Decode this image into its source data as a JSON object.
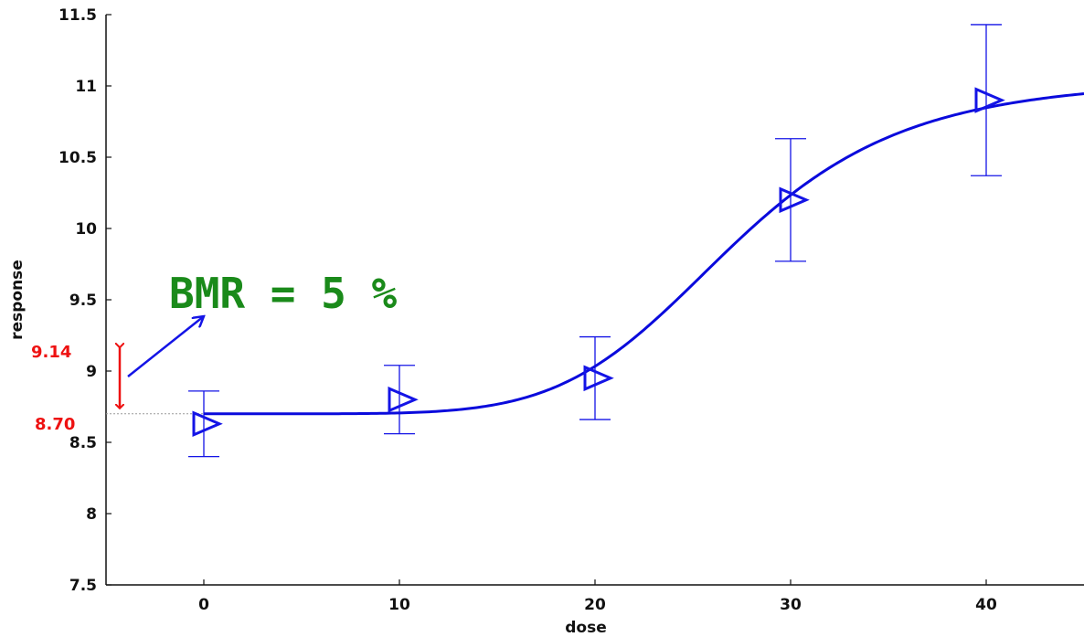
{
  "chart_data": {
    "type": "scatter",
    "xlabel": "dose",
    "ylabel": "response",
    "xlim": [
      -5,
      45
    ],
    "ylim": [
      7.5,
      11.5
    ],
    "x_ticks": [
      0,
      10,
      20,
      30,
      40
    ],
    "x_tick_labels": [
      "0",
      "10",
      "20",
      "30",
      "40"
    ],
    "y_ticks": [
      7.5,
      8,
      8.5,
      9,
      9.5,
      10,
      10.5,
      11,
      11.5
    ],
    "y_tick_labels": [
      "7.5",
      "8",
      "8.5",
      "9",
      "9.5",
      "10",
      "10.5",
      "11",
      "11.5"
    ],
    "grid": false,
    "series": [
      {
        "kind": "points-with-error-bars",
        "marker": "right-triangle",
        "x": [
          0,
          10,
          20,
          30,
          40
        ],
        "y": [
          8.63,
          8.8,
          8.95,
          10.2,
          10.9
        ],
        "err_low": [
          8.4,
          8.56,
          8.66,
          9.77,
          10.37
        ],
        "err_high": [
          8.86,
          9.04,
          9.24,
          10.63,
          11.43
        ]
      },
      {
        "kind": "fitted-curve",
        "model": {
          "base": 8.7,
          "max": 11.05,
          "ec50": 27,
          "hill": 6
        },
        "x_range": [
          0,
          45
        ]
      }
    ],
    "annotations": {
      "bmr_label": "BMR = 5 %",
      "upper_value": "9.14",
      "lower_value": "8.70",
      "upper_y": 9.14,
      "lower_y": 8.7
    },
    "colors": {
      "series": "#1414e6",
      "curve": "#0a0adc",
      "annotation_red": "#ee1111",
      "annotation_green": "#1a8a1a",
      "arrow_blue": "#1414e6",
      "reference_line": "#9a9a9a",
      "axis": "#111111"
    }
  }
}
